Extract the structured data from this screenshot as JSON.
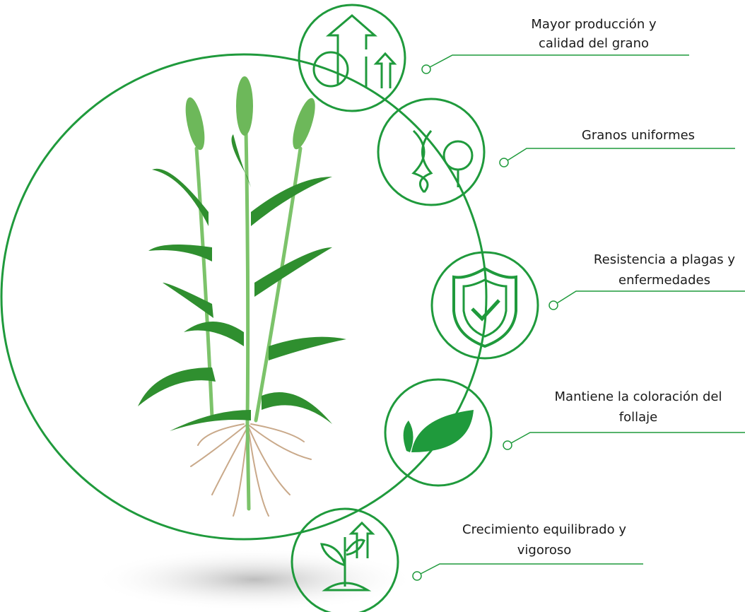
{
  "items": [
    {
      "lines": [
        "Mayor producción y",
        "calidad del grano"
      ]
    },
    {
      "lines": [
        "Granos uniformes"
      ]
    },
    {
      "lines": [
        "Resistencia a plagas y",
        "enfermedades"
      ]
    },
    {
      "lines": [
        "Mantiene la coloración del",
        "follaje"
      ]
    },
    {
      "lines": [
        "Crecimiento equilibrado y",
        "vigoroso"
      ]
    }
  ]
}
